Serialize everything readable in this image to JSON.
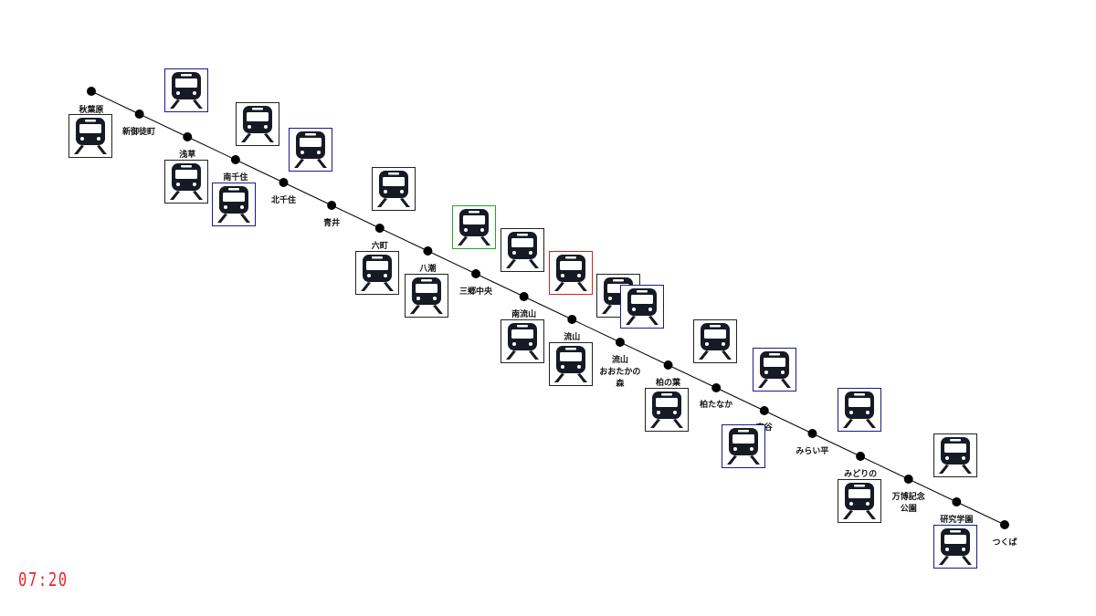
{
  "colors": {
    "line": "#000000",
    "station_dot": "#000000",
    "train_icon": "#161a24",
    "border_default": "#222222",
    "border_blue": "#1a1a8c",
    "border_green": "#22aa22",
    "border_red": "#d42020",
    "clock": "#e8242a"
  },
  "icon": "train-front-icon",
  "stations": [
    {
      "name": "秋葉原"
    },
    {
      "name": "新御徒町"
    },
    {
      "name": "浅草"
    },
    {
      "name": "南千住"
    },
    {
      "name": "北千住"
    },
    {
      "name": "青井"
    },
    {
      "name": "六町"
    },
    {
      "name": "八潮"
    },
    {
      "name": "三郷中央"
    },
    {
      "name": "南流山"
    },
    {
      "name": "流山"
    },
    {
      "name": "流山\nおおたかの\n森"
    },
    {
      "name": "柏の葉"
    },
    {
      "name": "柏たなか"
    },
    {
      "name": "守谷"
    },
    {
      "name": "みらい平"
    },
    {
      "name": "みどりの"
    },
    {
      "name": "万博記念\n公園"
    },
    {
      "name": "研究学園"
    },
    {
      "name": "つくば"
    }
  ],
  "trains": [
    {
      "border": "default"
    },
    {
      "border": "blue"
    },
    {
      "border": "default"
    },
    {
      "border": "default"
    },
    {
      "border": "blue"
    },
    {
      "border": "blue"
    },
    {
      "border": "default"
    },
    {
      "border": "default"
    },
    {
      "border": "default"
    },
    {
      "border": "green"
    },
    {
      "border": "default"
    },
    {
      "border": "default"
    },
    {
      "border": "red"
    },
    {
      "border": "default"
    },
    {
      "border": "default"
    },
    {
      "border": "blue"
    },
    {
      "border": "default"
    },
    {
      "border": "default"
    },
    {
      "border": "blue"
    },
    {
      "border": "blue"
    },
    {
      "border": "blue"
    },
    {
      "border": "default"
    },
    {
      "border": "default"
    },
    {
      "border": "default"
    },
    {
      "border": "blue"
    }
  ],
  "clock": {
    "time": "07:20"
  }
}
